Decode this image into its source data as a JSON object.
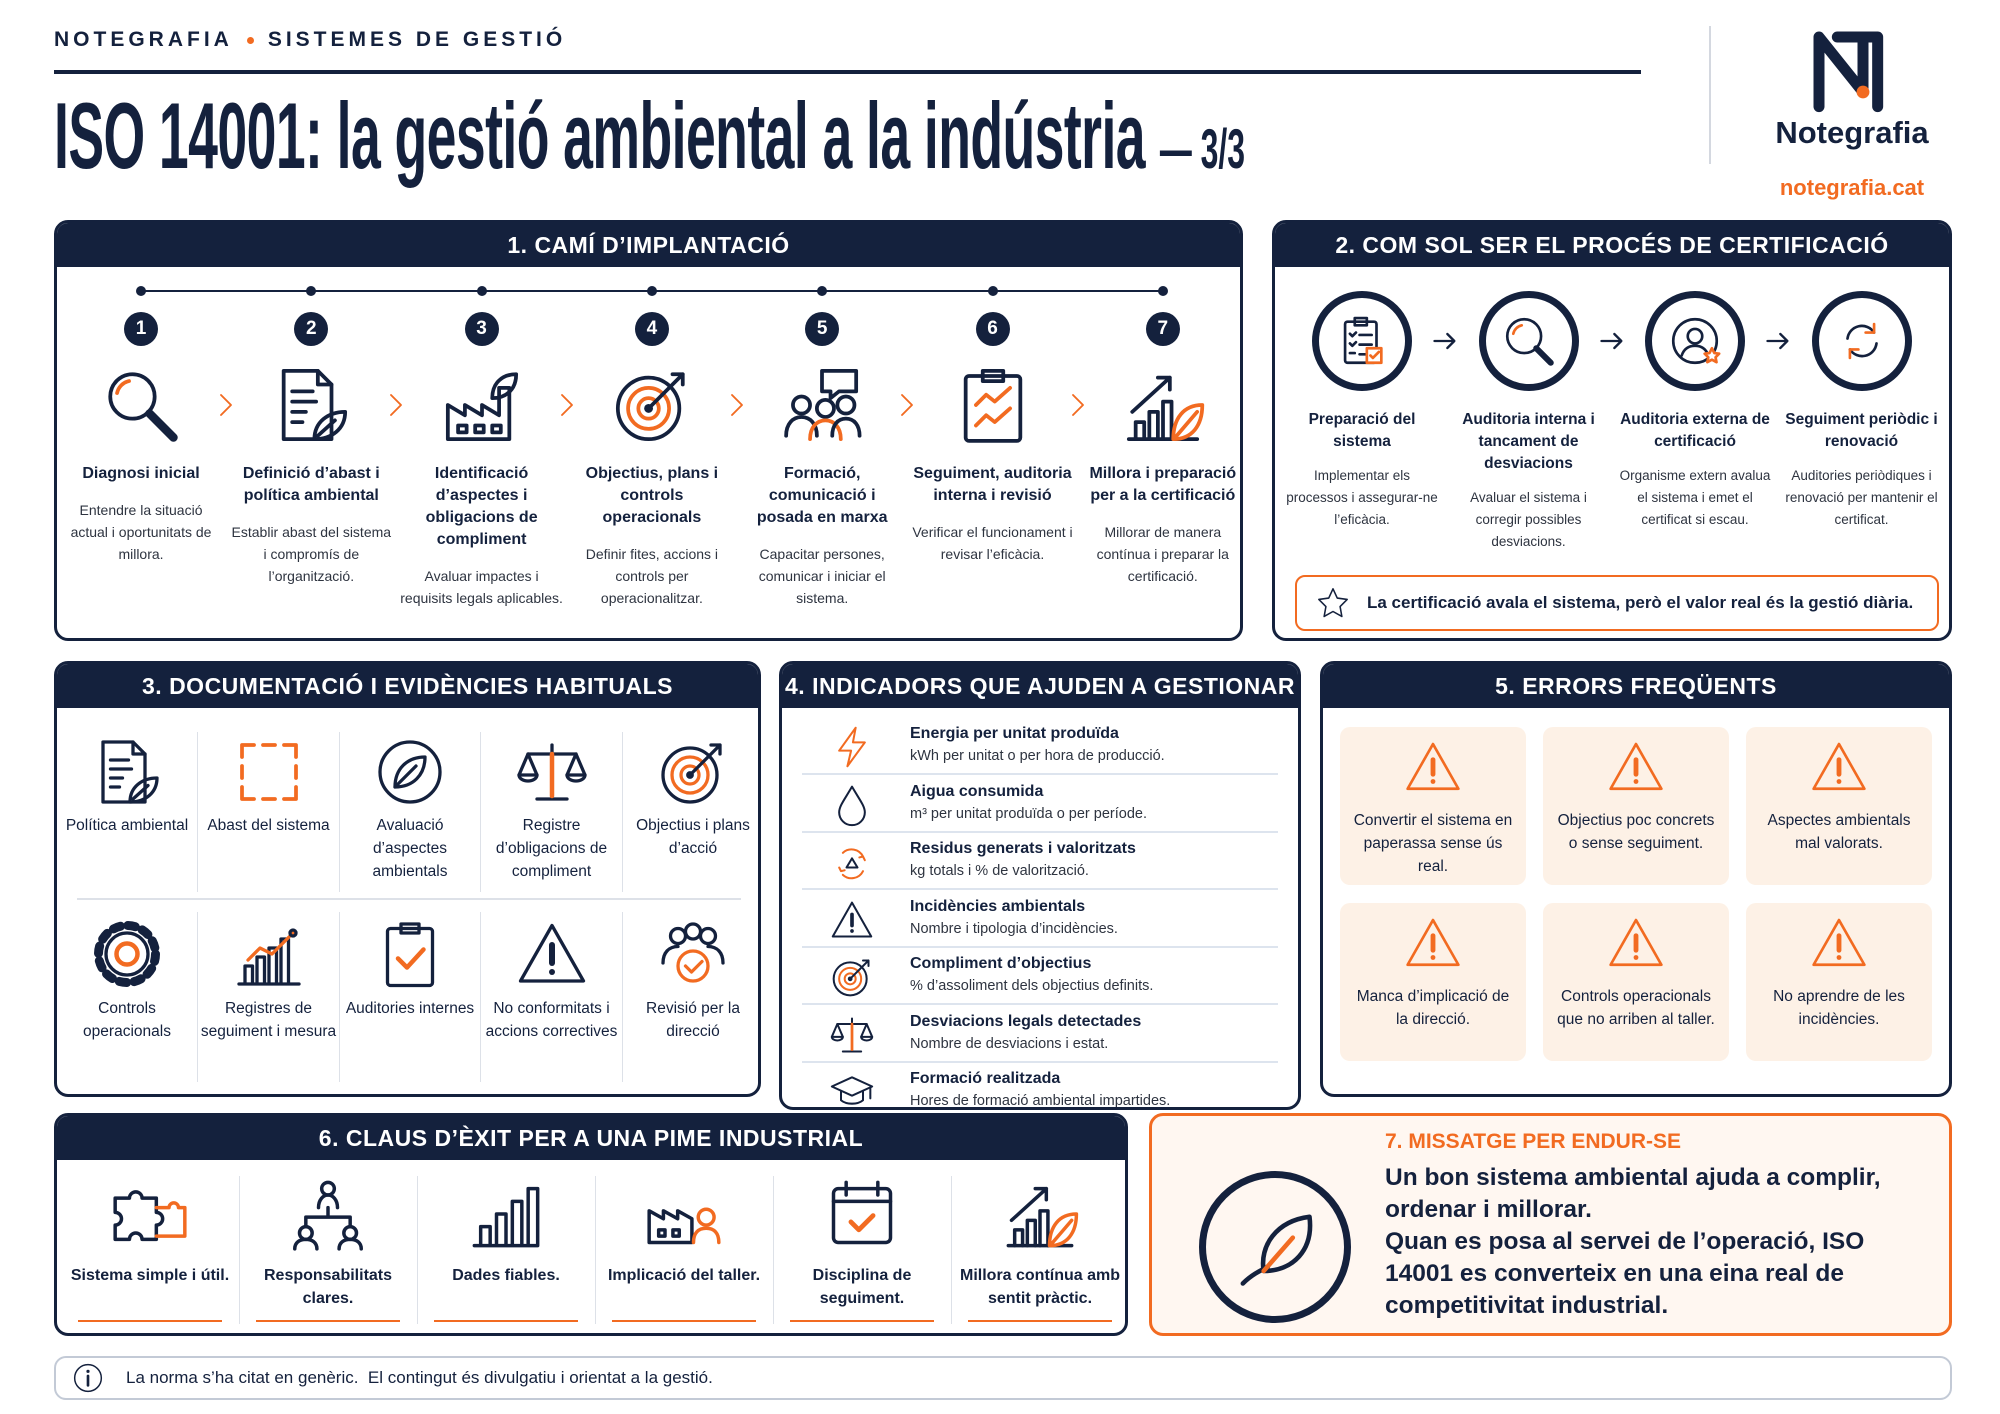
{
  "header": {
    "brand": "NOTEGRAFIA",
    "section": "SISTEMES DE GESTIÓ",
    "title": "ISO 14001: la gestió ambiental a la indústria",
    "part": "— 3/3"
  },
  "logo": {
    "name": "Notegrafia",
    "url": "notegrafia.cat"
  },
  "implementation": {
    "title": "1. CAMÍ D’IMPLANTACIÓ",
    "steps": [
      {
        "number": 1,
        "title": "Diagnosi inicial",
        "text": "Entendre la situació actual i oportunitats de millora."
      },
      {
        "number": 2,
        "title": "Definició d’abast i política ambiental",
        "text": "Establir abast del sistema i compromís de l’organització."
      },
      {
        "number": 3,
        "title": "Identificació d’aspectes i obligacions de compliment",
        "text": "Avaluar impactes i requisits legals aplicables."
      },
      {
        "number": 4,
        "title": "Objectius, plans i controls operacionals",
        "text": "Definir fites, accions i controls per operacionalitzar."
      },
      {
        "number": 5,
        "title": "Formació, comunicació i posada en marxa",
        "text": "Capacitar persones, comunicar i iniciar el sistema."
      },
      {
        "number": 6,
        "title": "Seguiment, auditoria interna i revisió",
        "text": "Verificar el funcionament i revisar l’eficàcia."
      },
      {
        "number": 7,
        "title": "Millora i preparació per a la certificació",
        "text": "Millorar de manera contínua i preparar la certificació."
      }
    ]
  },
  "certification": {
    "title": "2. COM SOL SER EL PROCÉS DE CERTIFICACIÓ",
    "steps": [
      {
        "title": "Preparació del sistema",
        "text": "Implementar els processos i assegurar-ne l’eficàcia."
      },
      {
        "title": "Auditoria interna i tancament de desviacions",
        "text": "Avaluar el sistema i corregir possibles desviacions."
      },
      {
        "title": "Auditoria externa de certificació",
        "text": "Organisme extern avalua el sistema i emet el certificat si escau."
      },
      {
        "title": "Seguiment periòdic i renovació",
        "text": "Auditories periòdiques i renovació per mantenir el certificat."
      }
    ],
    "note": "La certificació avala el sistema, però el valor real és la gestió diària."
  },
  "documentation": {
    "title": "3. DOCUMENTACIÓ I EVIDÈNCIES HABITUALS",
    "items": [
      "Política ambiental",
      "Abast del sistema",
      "Avaluació d’aspectes ambientals",
      "Registre d’obligacions de compliment",
      "Objectius i plans d’acció",
      "Controls operacionals",
      "Registres de seguiment i mesura",
      "Auditories internes",
      "No conformitats i accions correctives",
      "Revisió per la direcció"
    ]
  },
  "indicators": {
    "title": "4. INDICADORS QUE AJUDEN A GESTIONAR",
    "items": [
      {
        "title": "Energia per unitat produïda",
        "text": "kWh per unitat o per hora de producció."
      },
      {
        "title": "Aigua consumida",
        "text": "m³ per unitat produïda o per període."
      },
      {
        "title": "Residus generats i valoritzats",
        "text": "kg totals i % de valorització."
      },
      {
        "title": "Incidències ambientals",
        "text": "Nombre i tipologia d’incidències."
      },
      {
        "title": "Compliment d’objectius",
        "text": "% d’assoliment dels objectius definits."
      },
      {
        "title": "Desviacions legals detectades",
        "text": "Nombre de desviacions i estat."
      },
      {
        "title": "Formació realitzada",
        "text": "Hores de formació ambiental impartides."
      }
    ]
  },
  "errors": {
    "title": "5. ERRORS FREQÜENTS",
    "items": [
      "Convertir el sistema en paperassa sense ús real.",
      "Objectius poc concrets o sense seguiment.",
      "Aspectes ambientals mal valorats.",
      "Manca d’implicació de la direcció.",
      "Controls operacionals que no arriben al taller.",
      "No aprendre de les incidències."
    ]
  },
  "success": {
    "title": "6. CLAUS D’ÈXIT PER A UNA PIME INDUSTRIAL",
    "items": [
      "Sistema simple i útil.",
      "Responsabilitats clares.",
      "Dades fiables.",
      "Implicació del taller.",
      "Disciplina de seguiment.",
      "Millora contínua amb sentit pràctic."
    ]
  },
  "message": {
    "title": "7. MISSATGE PER ENDUR-SE",
    "paragraphs": [
      "Un bon sistema ambiental ajuda a complir, ordenar i millorar.",
      "Quan es posa al servei de l’operació, ISO 14001 es converteix en una eina real de competitivitat industrial."
    ]
  },
  "footer": {
    "text": "La norma s’ha citat en genèric.  El contingut és divulgatiu i orientat a la gestió."
  }
}
